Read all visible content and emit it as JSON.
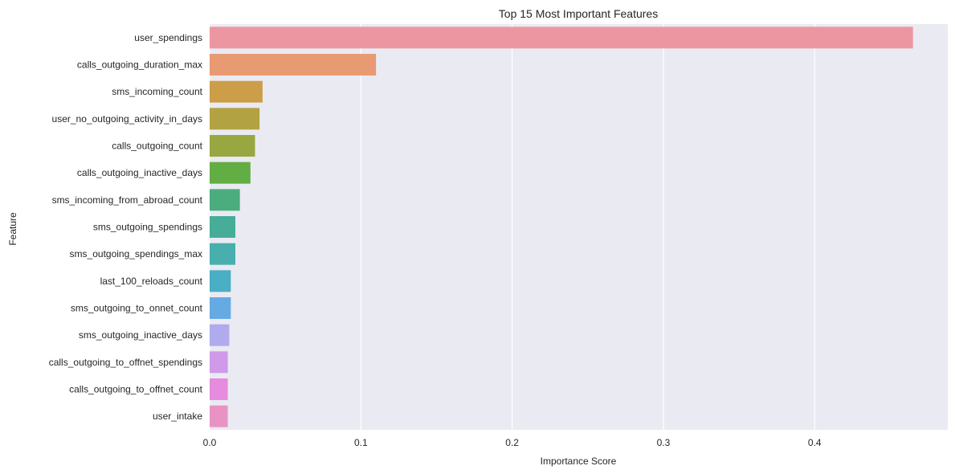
{
  "chart_data": {
    "type": "bar",
    "orientation": "horizontal",
    "title": "Top 15 Most Important Features",
    "xlabel": "Importance Score",
    "ylabel": "Feature",
    "xlim": [
      0,
      0.488
    ],
    "xticks": [
      0.0,
      0.1,
      0.2,
      0.3,
      0.4
    ],
    "xtick_labels": [
      "0.0",
      "0.1",
      "0.2",
      "0.3",
      "0.4"
    ],
    "grid": true,
    "categories": [
      "user_spendings",
      "calls_outgoing_duration_max",
      "sms_incoming_count",
      "user_no_outgoing_activity_in_days",
      "calls_outgoing_count",
      "calls_outgoing_inactive_days",
      "sms_incoming_from_abroad_count",
      "sms_outgoing_spendings",
      "sms_outgoing_spendings_max",
      "last_100_reloads_count",
      "sms_outgoing_to_onnet_count",
      "sms_outgoing_inactive_days",
      "calls_outgoing_to_offnet_spendings",
      "calls_outgoing_to_offnet_count",
      "user_intake"
    ],
    "values": [
      0.465,
      0.11,
      0.035,
      0.033,
      0.03,
      0.027,
      0.02,
      0.017,
      0.017,
      0.014,
      0.014,
      0.013,
      0.012,
      0.012,
      0.012
    ],
    "colors": [
      "#ec96a1",
      "#e89a72",
      "#cc9e48",
      "#b3a241",
      "#98a740",
      "#62ae44",
      "#4bad7e",
      "#47ac98",
      "#48aeae",
      "#4aaec4",
      "#66aae3",
      "#b0aaef",
      "#cf9ae9",
      "#e68bdd",
      "#e893c4"
    ],
    "background_color": "#eaeaf2"
  }
}
